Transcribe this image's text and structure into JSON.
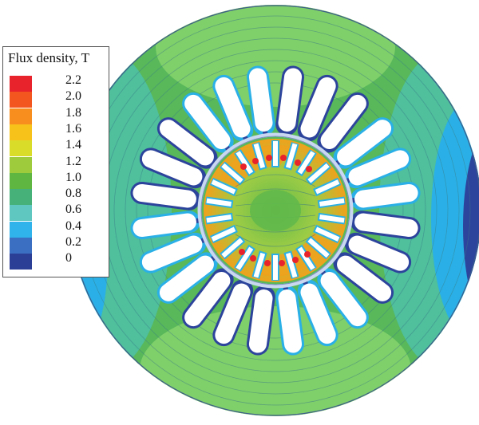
{
  "legend": {
    "title": "Flux density, T",
    "entries": [
      {
        "label": "2.2",
        "color": "#e8232b"
      },
      {
        "label": "2.0",
        "color": "#f4561f"
      },
      {
        "label": "1.8",
        "color": "#f88e1d"
      },
      {
        "label": "1.6",
        "color": "#f7c31a"
      },
      {
        "label": "1.4",
        "color": "#d9dd2a"
      },
      {
        "label": "1.2",
        "color": "#9ecb3c"
      },
      {
        "label": "1.0",
        "color": "#5fb640"
      },
      {
        "label": "0.8",
        "color": "#46b27a"
      },
      {
        "label": "0.6",
        "color": "#5fc7c0"
      },
      {
        "label": "0.4",
        "color": "#2fb3ea"
      },
      {
        "label": "0.2",
        "color": "#3a6fc2"
      },
      {
        "label": "0",
        "color": "#2c3f96"
      }
    ]
  },
  "machine": {
    "stator_slots": 24,
    "rotor_slots": 22,
    "colors": {
      "yoke_high": "#7fcf6a",
      "yoke_mid": "#58b85a",
      "yoke_low": "#4fbf9c",
      "side_low": "#2ab0e6",
      "edge_dark": "#2d449c",
      "tooth": "#55b548",
      "slot": "#ffffff",
      "airgap": "#c9d8f0",
      "rotor_bg": "#9ccc45",
      "rotor_hot": "#f0a11c",
      "rotor_peak": "#e8232b",
      "flux_line": "#3a7a86",
      "center_blob": "#62b94a"
    }
  }
}
